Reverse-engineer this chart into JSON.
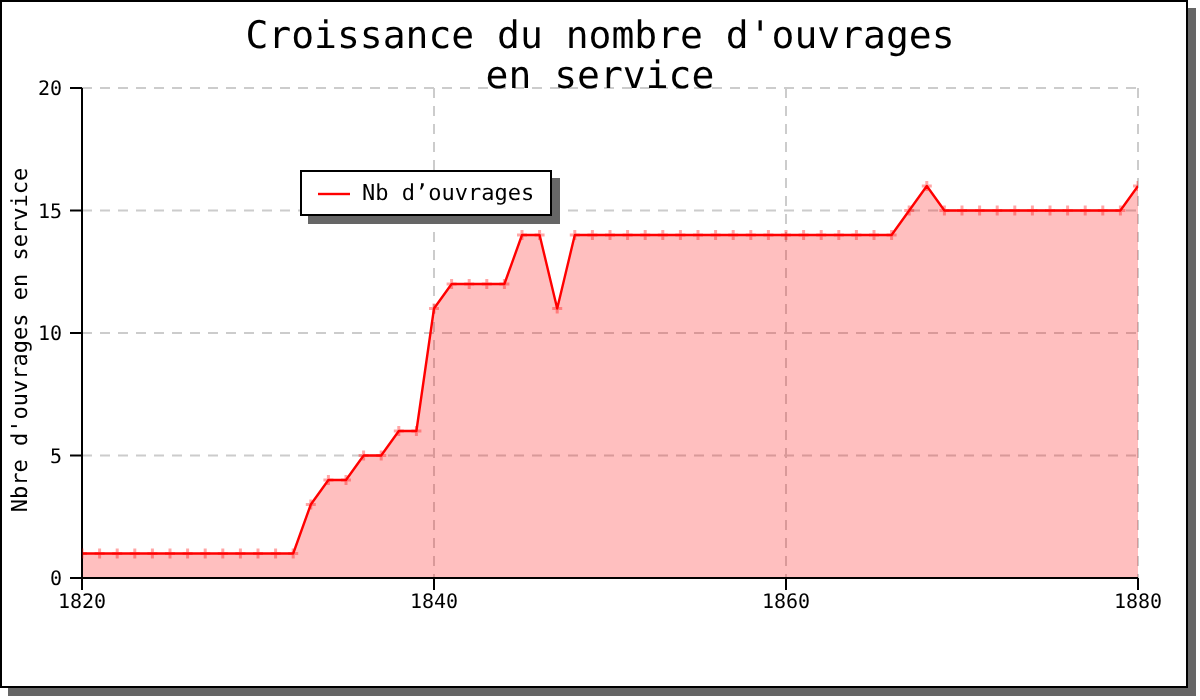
{
  "chart_data": {
    "type": "area",
    "title": "Croissance du nombre d'ouvrages\nen service",
    "ylabel": "Nbre d'ouvrages en service",
    "x": [
      1820,
      1821,
      1822,
      1823,
      1824,
      1825,
      1826,
      1827,
      1828,
      1829,
      1830,
      1831,
      1832,
      1833,
      1834,
      1835,
      1836,
      1837,
      1838,
      1839,
      1840,
      1841,
      1842,
      1843,
      1844,
      1845,
      1846,
      1847,
      1848,
      1849,
      1850,
      1851,
      1852,
      1853,
      1854,
      1855,
      1856,
      1857,
      1858,
      1859,
      1860,
      1861,
      1862,
      1863,
      1864,
      1865,
      1866,
      1867,
      1868,
      1869,
      1870,
      1871,
      1872,
      1873,
      1874,
      1875,
      1876,
      1877,
      1878,
      1879,
      1880
    ],
    "series": [
      {
        "name": "Nb d’ouvrages",
        "color": "#ff0000",
        "values": [
          1,
          1,
          1,
          1,
          1,
          1,
          1,
          1,
          1,
          1,
          1,
          1,
          1,
          3,
          4,
          4,
          5,
          5,
          6,
          6,
          11,
          12,
          12,
          12,
          12,
          14,
          14,
          11,
          14,
          14,
          14,
          14,
          14,
          14,
          14,
          14,
          14,
          14,
          14,
          14,
          14,
          14,
          14,
          14,
          14,
          14,
          14,
          15,
          16,
          15,
          15,
          15,
          15,
          15,
          15,
          15,
          15,
          15,
          15,
          15,
          16
        ]
      }
    ],
    "xlim": [
      1820,
      1880
    ],
    "xticks": [
      1820,
      1840,
      1860,
      1880
    ],
    "ylim": [
      0,
      20
    ],
    "yticks": [
      0,
      5,
      10,
      15,
      20
    ],
    "grid": true,
    "legend": "top left",
    "marker": "cross",
    "line_style": "solid"
  }
}
